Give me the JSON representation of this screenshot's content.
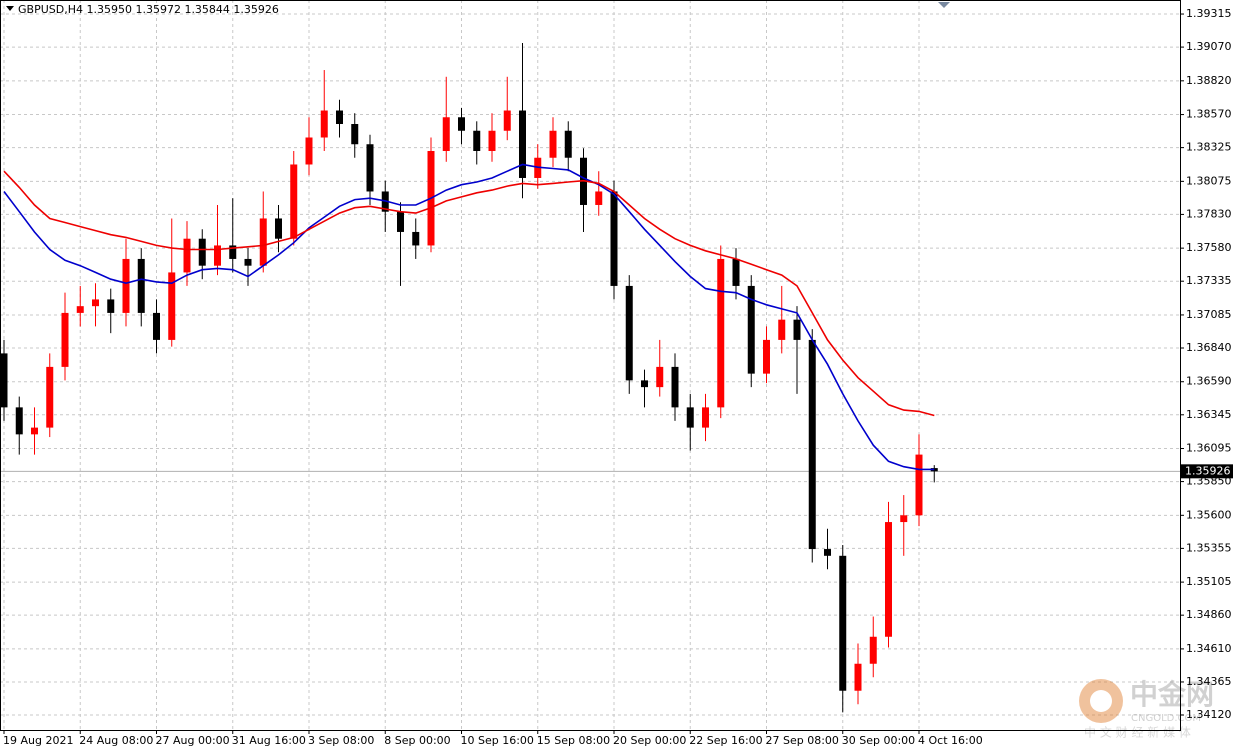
{
  "chart_data": {
    "type": "candlestick",
    "title": "GBPUSD,H4  1.35950 1.35972 1.35844 1.35926",
    "categories": [
      "19 Aug 2021",
      null,
      null,
      null,
      null,
      "24 Aug 08:00",
      null,
      null,
      null,
      null,
      "27 Aug 00:00",
      null,
      null,
      null,
      null,
      "31 Aug 16:00",
      null,
      null,
      null,
      null,
      "3 Sep 08:00",
      null,
      null,
      null,
      null,
      "8 Sep 00:00",
      null,
      null,
      null,
      null,
      "10 Sep 16:00",
      null,
      null,
      null,
      null,
      "15 Sep 08:00",
      null,
      null,
      null,
      null,
      "20 Sep 00:00",
      null,
      null,
      null,
      null,
      "22 Sep 16:00",
      null,
      null,
      null,
      null,
      "27 Sep 08:00",
      null,
      null,
      null,
      null,
      "30 Sep 00:00",
      null,
      null,
      null,
      null,
      "4 Oct 16:00",
      null
    ],
    "open": [
      1.368,
      1.364,
      1.362,
      1.3625,
      1.367,
      1.371,
      1.3715,
      1.372,
      1.371,
      1.375,
      1.371,
      1.369,
      1.374,
      1.3765,
      1.3745,
      1.376,
      1.375,
      1.3745,
      1.378,
      1.3765,
      1.382,
      1.384,
      1.386,
      1.385,
      1.3835,
      1.38,
      1.3785,
      1.377,
      1.376,
      1.383,
      1.3855,
      1.3845,
      1.383,
      1.3845,
      1.386,
      1.381,
      1.3825,
      1.3845,
      1.3825,
      1.379,
      1.38,
      1.373,
      1.366,
      1.3655,
      1.367,
      1.364,
      1.3625,
      1.364,
      1.375,
      1.373,
      1.3665,
      1.369,
      1.3705,
      1.369,
      1.3535,
      1.353,
      1.343,
      1.345,
      1.347,
      1.3555,
      1.356,
      1.3595
    ],
    "high": [
      1.369,
      1.3648,
      1.364,
      1.368,
      1.3725,
      1.373,
      1.3732,
      1.3728,
      1.3765,
      1.3758,
      1.372,
      1.378,
      1.3778,
      1.3772,
      1.379,
      1.3795,
      1.3758,
      1.38,
      1.379,
      1.383,
      1.3855,
      1.389,
      1.3868,
      1.3858,
      1.3842,
      1.3808,
      1.3792,
      1.378,
      1.384,
      1.3885,
      1.3862,
      1.3852,
      1.3858,
      1.3885,
      1.391,
      1.3835,
      1.3855,
      1.3852,
      1.3832,
      1.3815,
      1.3808,
      1.3738,
      1.3668,
      1.369,
      1.368,
      1.365,
      1.365,
      1.376,
      1.3758,
      1.3738,
      1.37,
      1.373,
      1.3715,
      1.3698,
      1.355,
      1.3538,
      1.3465,
      1.3485,
      1.357,
      1.3575,
      1.362,
      1.35972
    ],
    "low": [
      1.363,
      1.3605,
      1.3605,
      1.3618,
      1.366,
      1.37,
      1.37,
      1.3695,
      1.37,
      1.37,
      1.368,
      1.3685,
      1.373,
      1.3735,
      1.3738,
      1.374,
      1.373,
      1.374,
      1.3755,
      1.376,
      1.3812,
      1.383,
      1.384,
      1.3825,
      1.379,
      1.377,
      1.373,
      1.375,
      1.3755,
      1.3822,
      1.3835,
      1.382,
      1.3822,
      1.3838,
      1.3795,
      1.3802,
      1.3818,
      1.3815,
      1.377,
      1.3782,
      1.372,
      1.365,
      1.364,
      1.3648,
      1.363,
      1.3608,
      1.3615,
      1.3632,
      1.372,
      1.3655,
      1.3658,
      1.368,
      1.365,
      1.3525,
      1.352,
      1.3414,
      1.342,
      1.344,
      1.3462,
      1.353,
      1.3552,
      1.35844
    ],
    "close": [
      1.364,
      1.362,
      1.3625,
      1.367,
      1.371,
      1.3715,
      1.372,
      1.371,
      1.375,
      1.371,
      1.369,
      1.374,
      1.3765,
      1.3745,
      1.376,
      1.375,
      1.3745,
      1.378,
      1.3765,
      1.382,
      1.384,
      1.386,
      1.385,
      1.3835,
      1.38,
      1.3785,
      1.377,
      1.376,
      1.383,
      1.3855,
      1.3845,
      1.383,
      1.3845,
      1.386,
      1.381,
      1.3825,
      1.3845,
      1.3825,
      1.379,
      1.38,
      1.373,
      1.366,
      1.3655,
      1.367,
      1.364,
      1.3625,
      1.364,
      1.375,
      1.373,
      1.3665,
      1.369,
      1.3705,
      1.369,
      1.3535,
      1.353,
      1.343,
      1.345,
      1.347,
      1.3555,
      1.356,
      1.3605,
      1.35926
    ],
    "up_color": "#ff0000",
    "down_color": "#000000",
    "lines": [
      {
        "color": "#0000cc",
        "values": [
          1.38,
          1.3785,
          1.377,
          1.3757,
          1.3749,
          1.3745,
          1.374,
          1.3735,
          1.3732,
          1.3735,
          1.3733,
          1.3732,
          1.3738,
          1.3742,
          1.3743,
          1.3742,
          1.3737,
          1.3745,
          1.3753,
          1.3762,
          1.3773,
          1.3781,
          1.3789,
          1.3794,
          1.3795,
          1.3793,
          1.379,
          1.379,
          1.3795,
          1.3801,
          1.3805,
          1.3807,
          1.381,
          1.3815,
          1.382,
          1.3818,
          1.3817,
          1.3816,
          1.381,
          1.3805,
          1.3798,
          1.3785,
          1.3772,
          1.376,
          1.3748,
          1.3737,
          1.3728,
          1.3726,
          1.3725,
          1.372,
          1.3716,
          1.3713,
          1.371,
          1.369,
          1.3672,
          1.365,
          1.363,
          1.3612,
          1.36,
          1.3596,
          1.3594,
          1.3594
        ]
      },
      {
        "color": "#ee0000",
        "values": [
          1.3815,
          1.3803,
          1.379,
          1.378,
          1.3777,
          1.3774,
          1.3771,
          1.3768,
          1.3766,
          1.3763,
          1.376,
          1.3758,
          1.3757,
          1.3757,
          1.3757,
          1.3758,
          1.3759,
          1.376,
          1.3763,
          1.3766,
          1.3772,
          1.3778,
          1.3784,
          1.3788,
          1.3789,
          1.3787,
          1.3785,
          1.3784,
          1.3788,
          1.3793,
          1.3796,
          1.3799,
          1.3801,
          1.3804,
          1.3806,
          1.3805,
          1.3806,
          1.3807,
          1.3808,
          1.3806,
          1.38,
          1.379,
          1.378,
          1.3772,
          1.3765,
          1.376,
          1.3756,
          1.3753,
          1.375,
          1.3746,
          1.3742,
          1.3738,
          1.373,
          1.371,
          1.369,
          1.3675,
          1.3662,
          1.3652,
          1.3642,
          1.3638,
          1.3637,
          1.3634
        ]
      }
    ],
    "ylim": [
      1.34009,
      1.39419
    ],
    "yticks": [
      {
        "value": 1.39315,
        "label": "1.39315"
      },
      {
        "value": 1.3907,
        "label": "1.39070"
      },
      {
        "value": 1.3882,
        "label": "1.38820"
      },
      {
        "value": 1.3857,
        "label": "1.38570"
      },
      {
        "value": 1.38325,
        "label": "1.38325"
      },
      {
        "value": 1.38075,
        "label": "1.38075"
      },
      {
        "value": 1.3783,
        "label": "1.37830"
      },
      {
        "value": 1.3758,
        "label": "1.37580"
      },
      {
        "value": 1.37335,
        "label": "1.37335"
      },
      {
        "value": 1.37085,
        "label": "1.37085"
      },
      {
        "value": 1.3684,
        "label": "1.36840"
      },
      {
        "value": 1.3659,
        "label": "1.36590"
      },
      {
        "value": 1.36345,
        "label": "1.36345"
      },
      {
        "value": 1.36095,
        "label": "1.36095"
      },
      {
        "value": 1.3585,
        "label": "1.35850"
      },
      {
        "value": 1.356,
        "label": "1.35600"
      },
      {
        "value": 1.35355,
        "label": "1.35355"
      },
      {
        "value": 1.35105,
        "label": "1.35105"
      },
      {
        "value": 1.3486,
        "label": "1.34860"
      },
      {
        "value": 1.3461,
        "label": "1.34610"
      },
      {
        "value": 1.34365,
        "label": "1.34365"
      },
      {
        "value": 1.3412,
        "label": "1.34120"
      }
    ],
    "grid": true,
    "current_price": {
      "value": 1.35926,
      "label": "1.35926"
    },
    "watermark": {
      "brand": "中金网",
      "site": "CNGOLD.COM",
      "slogan": "中 文 财 经 新 媒 体"
    }
  }
}
